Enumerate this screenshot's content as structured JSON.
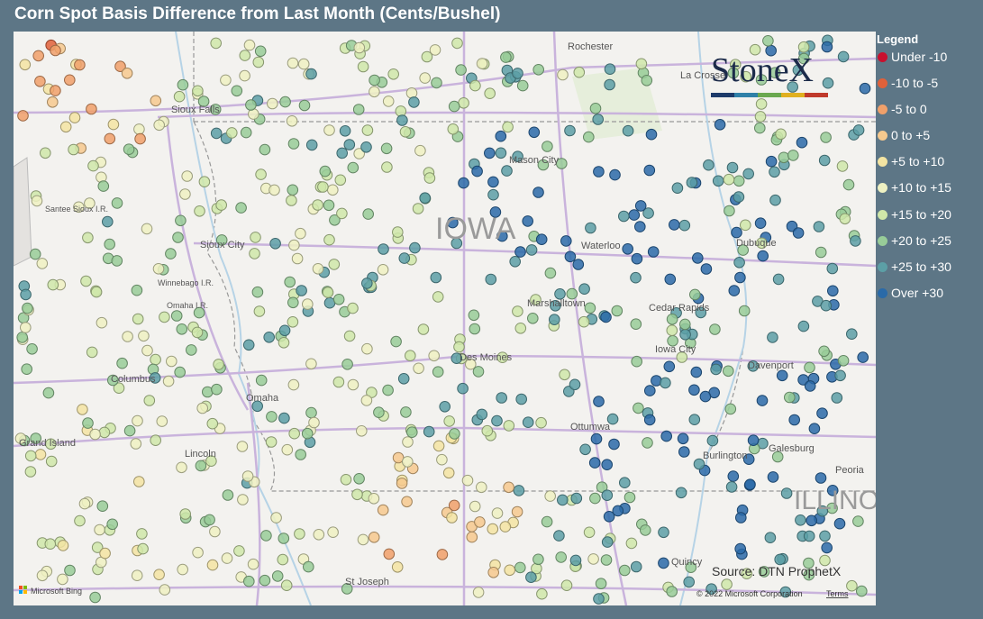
{
  "header": {
    "title": "Corn Spot Basis Difference from Last Month (Cents/Bushel)"
  },
  "legend": {
    "title": "Legend",
    "items": [
      {
        "label": "Under -10",
        "color": "#c8102e"
      },
      {
        "label": "-10 to -5",
        "color": "#e0613a"
      },
      {
        "label": "-5 to 0",
        "color": "#f0a06a"
      },
      {
        "label": "0 to +5",
        "color": "#f6c98e"
      },
      {
        "label": "+5 to +10",
        "color": "#f3e4a2"
      },
      {
        "label": "+10 to +15",
        "color": "#eef1c2"
      },
      {
        "label": "+15 to +20",
        "color": "#cfe7a9"
      },
      {
        "label": "+20 to +25",
        "color": "#98cc98"
      },
      {
        "label": "+25 to +30",
        "color": "#5c9fa6"
      },
      {
        "label": "Over +30",
        "color": "#2a6aa8"
      }
    ]
  },
  "map": {
    "labels": [
      "Rochester",
      "La Crosse",
      "Sioux Falls",
      "Santee Sioux I.R.",
      "Sioux City",
      "Mason City",
      "IOWA",
      "Waterloo",
      "Dubuque",
      "Winnebago I.R.",
      "Omaha I.R.",
      "Marshalltown",
      "Cedar Rapids",
      "Iowa City",
      "Davenport",
      "Des Moines",
      "Columbus",
      "Omaha",
      "Grand Island",
      "Lincoln",
      "Ottumwa",
      "Burlington",
      "Galesburg",
      "Peoria",
      "ILLINOIS",
      "Quincy",
      "St Joseph"
    ],
    "logo": "StoneX",
    "source": "Source: DTN ProphetX",
    "copyright": "© 2022 Microsoft Corporation",
    "terms": "Terms",
    "bing": "Microsoft Bing"
  }
}
